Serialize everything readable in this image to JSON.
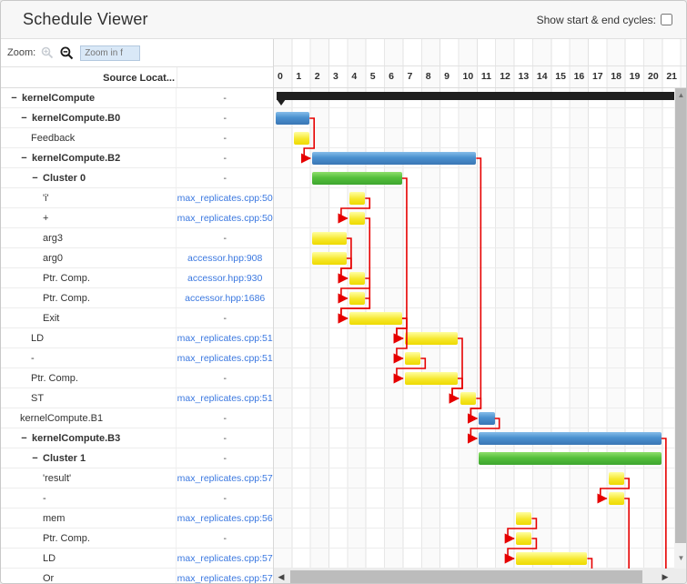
{
  "window": {
    "title": "Schedule Viewer",
    "cycles_label": "Show start & end cycles:",
    "cycles_checkbox_checked": false
  },
  "toolbar": {
    "zoom_label": "Zoom:",
    "zoom_placeholder": "Zoom in f",
    "zoom_in_icon": "magnifier-plus-icon",
    "zoom_out_icon": "magnifier-minus-icon"
  },
  "grid": {
    "source_column_header": "Source Locat..."
  },
  "colors": {
    "bar_blue": "#4a90cf",
    "bar_green": "#54bf3b",
    "bar_yellow": "#f6e72c",
    "bar_summary": "#1f1f1f",
    "dependency_red": "#e60000",
    "source_link_blue": "#3b78e0"
  },
  "chart_data": {
    "type": "gantt",
    "time_unit": "cycles",
    "axis_ticks": [
      0,
      1,
      2,
      3,
      4,
      5,
      6,
      7,
      8,
      9,
      10,
      11,
      12,
      13,
      14,
      15,
      16,
      17,
      18,
      19,
      20,
      21
    ],
    "axis_range": [
      0,
      22
    ],
    "rows": [
      {
        "name": "kernelCompute",
        "level": 0,
        "expandable": true,
        "source": "-",
        "bar": {
          "type": "summary",
          "start": 0,
          "end": 22
        }
      },
      {
        "name": "kernelCompute.B0",
        "level": 1,
        "expandable": true,
        "source": "-",
        "bar": {
          "type": "blue",
          "start": 0,
          "end": 2
        }
      },
      {
        "name": "Feedback",
        "level": 2,
        "expandable": false,
        "source": "-",
        "bar": {
          "type": "yellow",
          "start": 1,
          "end": 2
        }
      },
      {
        "name": "kernelCompute.B2",
        "level": 1,
        "expandable": true,
        "source": "-",
        "bar": {
          "type": "blue",
          "start": 2,
          "end": 11
        }
      },
      {
        "name": "Cluster 0",
        "level": 2,
        "expandable": true,
        "source": "-",
        "bar": {
          "type": "green",
          "start": 2,
          "end": 7
        }
      },
      {
        "name": "'i'",
        "level": 3,
        "expandable": false,
        "source": "max_replicates.cpp:50",
        "bar": {
          "type": "yellow",
          "start": 4,
          "end": 5
        }
      },
      {
        "name": "+",
        "level": 3,
        "expandable": false,
        "source": "max_replicates.cpp:50",
        "bar": {
          "type": "yellow",
          "start": 4,
          "end": 5
        }
      },
      {
        "name": "arg3",
        "level": 3,
        "expandable": false,
        "source": "-",
        "bar": {
          "type": "yellow",
          "start": 2,
          "end": 4
        }
      },
      {
        "name": "arg0",
        "level": 3,
        "expandable": false,
        "source": "accessor.hpp:908",
        "bar": {
          "type": "yellow",
          "start": 2,
          "end": 4
        }
      },
      {
        "name": "Ptr. Comp.",
        "level": 3,
        "expandable": false,
        "source": "accessor.hpp:930",
        "bar": {
          "type": "yellow",
          "start": 4,
          "end": 5
        }
      },
      {
        "name": "Ptr. Comp.",
        "level": 3,
        "expandable": false,
        "source": "accessor.hpp:1686",
        "bar": {
          "type": "yellow",
          "start": 4,
          "end": 5
        }
      },
      {
        "name": "Exit",
        "level": 3,
        "expandable": false,
        "source": "-",
        "bar": {
          "type": "yellow",
          "start": 4,
          "end": 7
        }
      },
      {
        "name": "LD",
        "level": 2,
        "expandable": false,
        "source": "max_replicates.cpp:51",
        "bar": {
          "type": "yellow",
          "start": 7,
          "end": 10
        }
      },
      {
        "name": "-",
        "level": 2,
        "expandable": false,
        "source": "max_replicates.cpp:51",
        "bar": {
          "type": "yellow",
          "start": 7,
          "end": 8
        }
      },
      {
        "name": "Ptr. Comp.",
        "level": 2,
        "expandable": false,
        "source": "-",
        "bar": {
          "type": "yellow",
          "start": 7,
          "end": 10
        }
      },
      {
        "name": "ST",
        "level": 2,
        "expandable": false,
        "source": "max_replicates.cpp:51",
        "bar": {
          "type": "yellow",
          "start": 10,
          "end": 11
        }
      },
      {
        "name": "kernelCompute.B1",
        "level": 1,
        "expandable": false,
        "source": "-",
        "bar": {
          "type": "blue",
          "start": 11,
          "end": 12
        }
      },
      {
        "name": "kernelCompute.B3",
        "level": 1,
        "expandable": true,
        "source": "-",
        "bar": {
          "type": "blue",
          "start": 11,
          "end": 21
        }
      },
      {
        "name": "Cluster 1",
        "level": 2,
        "expandable": true,
        "source": "-",
        "bar": {
          "type": "green",
          "start": 11,
          "end": 21
        }
      },
      {
        "name": "'result'",
        "level": 3,
        "expandable": false,
        "source": "max_replicates.cpp:57",
        "bar": {
          "type": "yellow",
          "start": 18,
          "end": 19
        }
      },
      {
        "name": "-",
        "level": 3,
        "expandable": false,
        "source": "-",
        "bar": {
          "type": "yellow",
          "start": 18,
          "end": 19
        }
      },
      {
        "name": "mem",
        "level": 3,
        "expandable": false,
        "source": "max_replicates.cpp:56",
        "bar": {
          "type": "yellow",
          "start": 13,
          "end": 14
        }
      },
      {
        "name": "Ptr. Comp.",
        "level": 3,
        "expandable": false,
        "source": "-",
        "bar": {
          "type": "yellow",
          "start": 13,
          "end": 14
        }
      },
      {
        "name": "LD",
        "level": 3,
        "expandable": false,
        "source": "max_replicates.cpp:57",
        "bar": {
          "type": "yellow",
          "start": 13,
          "end": 17
        }
      },
      {
        "name": "Or",
        "level": 3,
        "expandable": false,
        "source": "max_replicates.cpp:57",
        "bar": {
          "type": "yellow",
          "start": 13,
          "end": 14
        }
      }
    ],
    "dependencies": [
      {
        "from": 1,
        "to": 3
      },
      {
        "from": 3,
        "to": 16
      },
      {
        "from": 4,
        "to": 12
      },
      {
        "from": 5,
        "to": 6
      },
      {
        "from": 6,
        "to": 11
      },
      {
        "from": 7,
        "to": 9
      },
      {
        "from": 8,
        "to": 9
      },
      {
        "from": 9,
        "to": 10
      },
      {
        "from": 10,
        "to": 11
      },
      {
        "from": 11,
        "to": 12
      },
      {
        "from": 11,
        "to": 13
      },
      {
        "from": 13,
        "to": 14
      },
      {
        "from": 12,
        "to": 15
      },
      {
        "from": 14,
        "to": 15
      },
      {
        "from": 15,
        "to": 16
      },
      {
        "from": 16,
        "to": 17
      },
      {
        "from": 17,
        "drop": true
      },
      {
        "from": 19,
        "to": 20
      },
      {
        "from": 20,
        "drop": true
      },
      {
        "from": 21,
        "to": 22
      },
      {
        "from": 22,
        "to": 23
      },
      {
        "from": 23,
        "drop": true
      }
    ]
  }
}
